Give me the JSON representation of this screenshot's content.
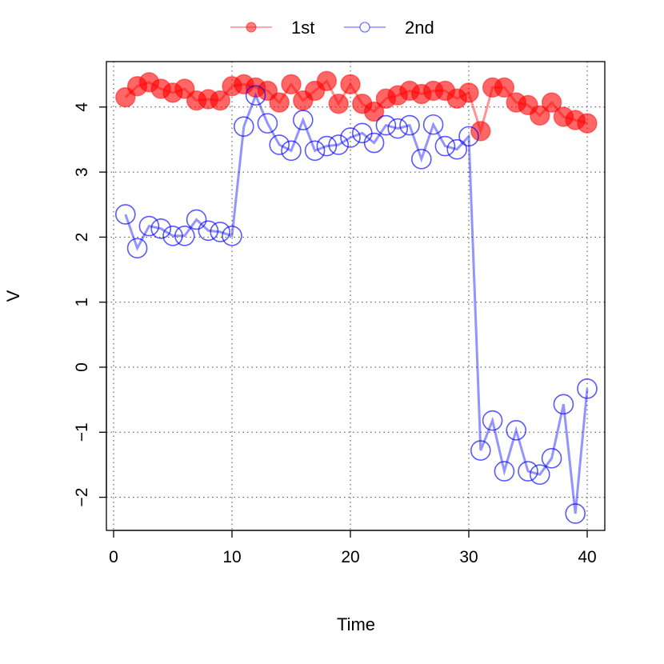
{
  "chart_data": {
    "type": "line",
    "xlabel": "Time",
    "ylabel": "V",
    "xlim": [
      0,
      40
    ],
    "ylim": [
      -2.5,
      4.7
    ],
    "x_ticks": [
      0,
      10,
      20,
      30,
      40
    ],
    "y_ticks": [
      -2,
      -1,
      0,
      1,
      2,
      3,
      4
    ],
    "grid": true,
    "legend_position": "top-center",
    "x": [
      1,
      2,
      3,
      4,
      5,
      6,
      7,
      8,
      9,
      10,
      11,
      12,
      13,
      14,
      15,
      16,
      17,
      18,
      19,
      20,
      21,
      22,
      23,
      24,
      25,
      26,
      27,
      28,
      29,
      30,
      31,
      32,
      33,
      34,
      35,
      36,
      37,
      38,
      39,
      40
    ],
    "series": [
      {
        "name": "1st",
        "color": "#ff0000",
        "marker": "filled-circle",
        "values": [
          4.15,
          4.32,
          4.38,
          4.28,
          4.22,
          4.28,
          4.1,
          4.12,
          4.1,
          4.32,
          4.35,
          4.3,
          4.25,
          4.07,
          4.35,
          4.1,
          4.25,
          4.4,
          4.05,
          4.35,
          4.05,
          3.93,
          4.13,
          4.18,
          4.25,
          4.2,
          4.25,
          4.25,
          4.13,
          4.22,
          3.63,
          4.3,
          4.3,
          4.07,
          4.03,
          3.87,
          4.07,
          3.85,
          3.8,
          3.75
        ]
      },
      {
        "name": "2nd",
        "color": "#0000ff",
        "marker": "open-circle",
        "values": [
          2.35,
          1.83,
          2.17,
          2.13,
          2.02,
          2.02,
          2.27,
          2.1,
          2.08,
          2.02,
          3.7,
          4.18,
          3.75,
          3.42,
          3.33,
          3.8,
          3.33,
          3.4,
          3.42,
          3.53,
          3.6,
          3.45,
          3.72,
          3.67,
          3.72,
          3.2,
          3.73,
          3.4,
          3.35,
          3.55,
          -1.28,
          -0.82,
          -1.6,
          -0.97,
          -1.6,
          -1.65,
          -1.4,
          -0.57,
          -2.25,
          -0.33
        ]
      }
    ]
  }
}
